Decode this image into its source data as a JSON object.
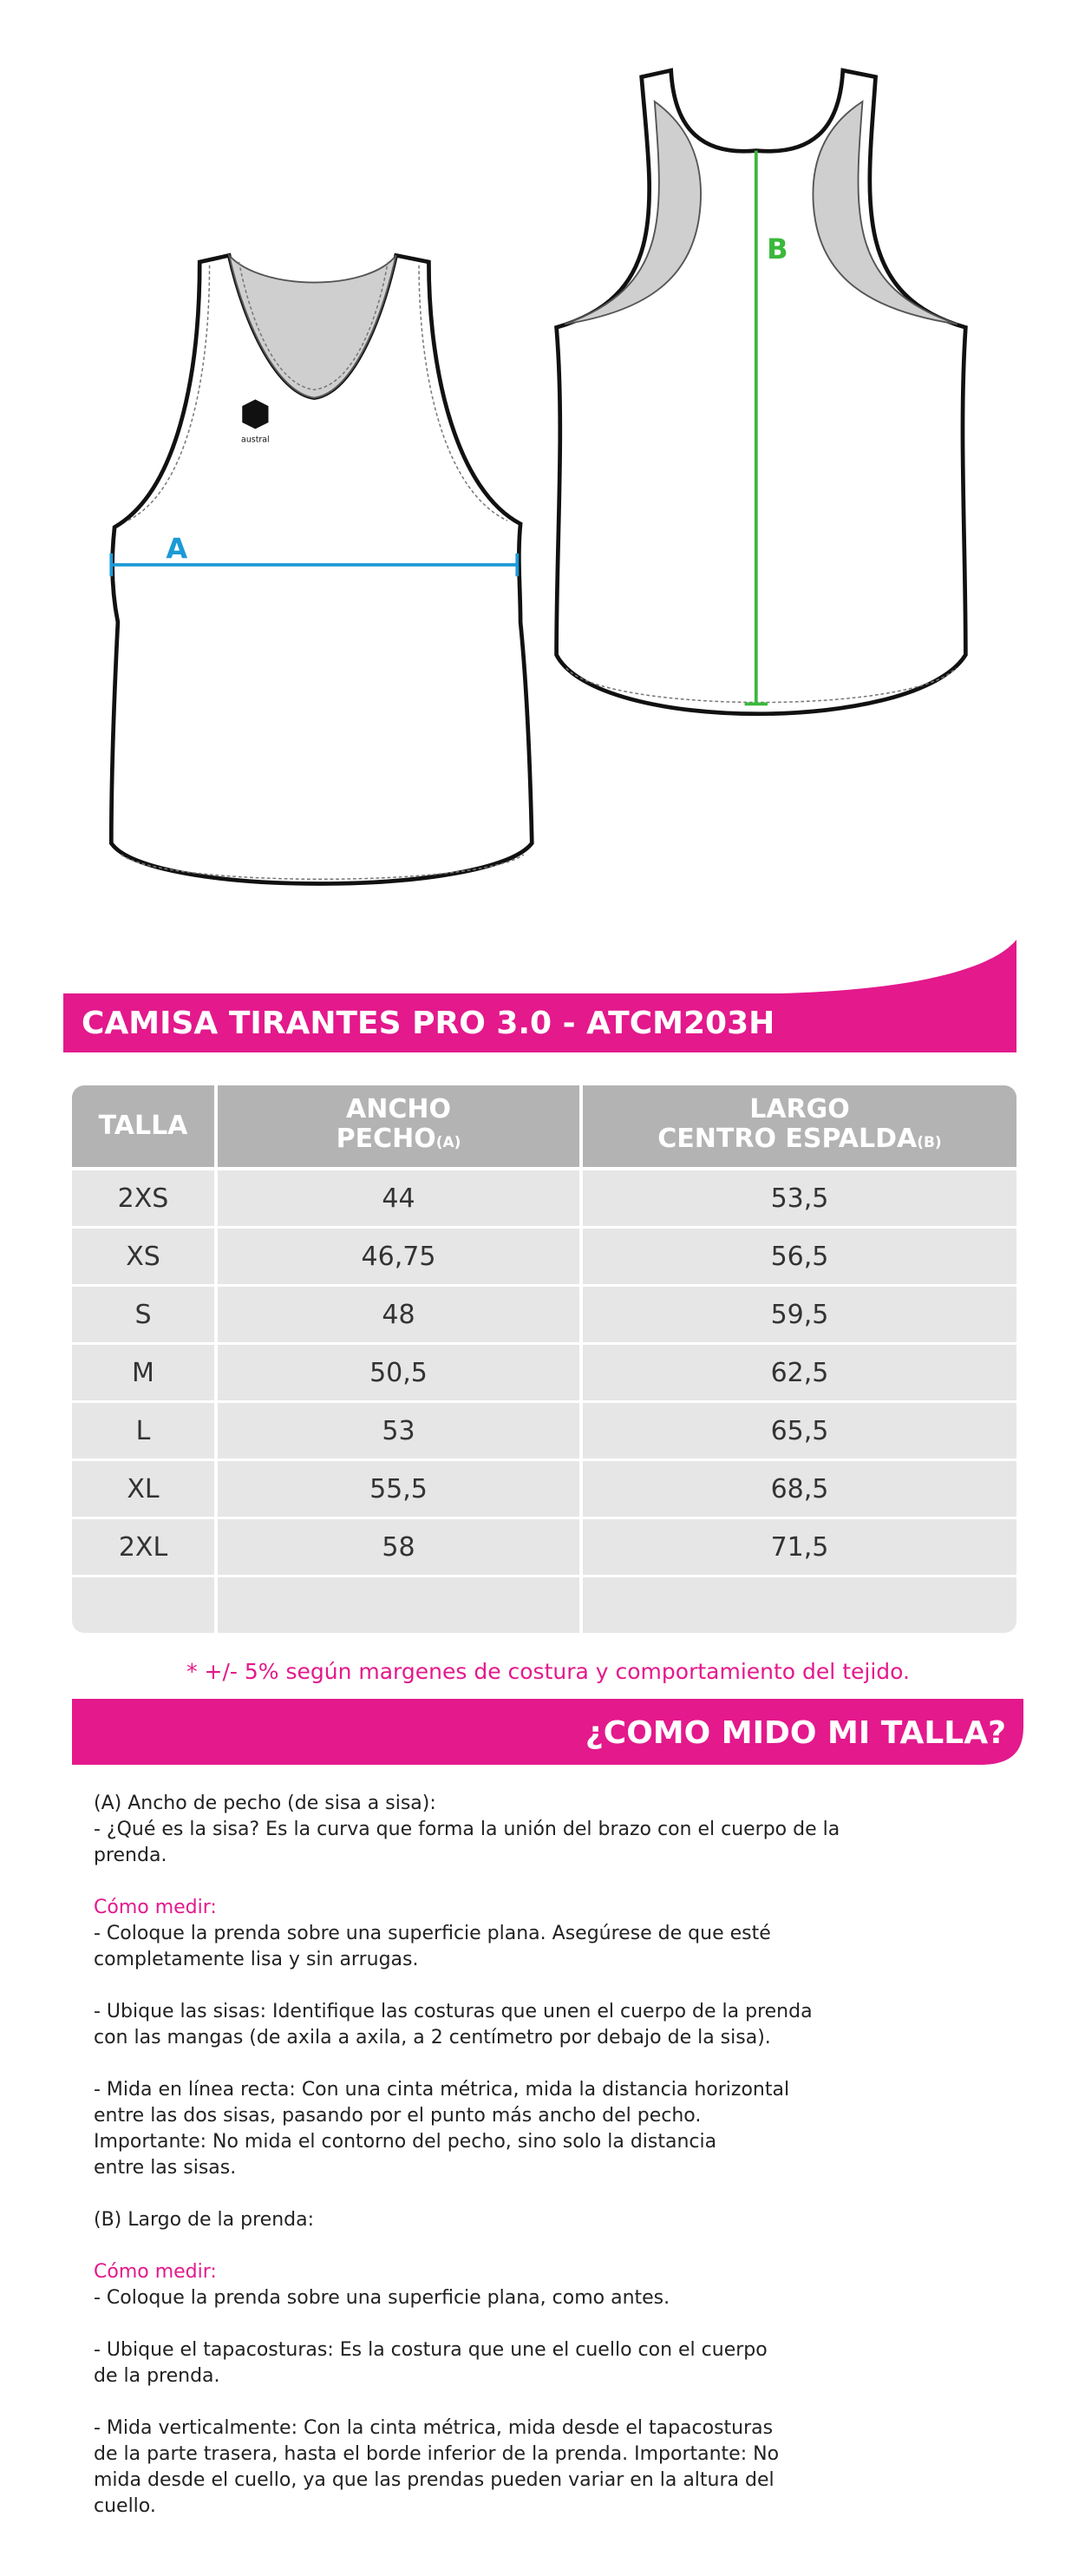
{
  "illustration": {
    "logo": "austral",
    "label_a": "A",
    "label_b": "B"
  },
  "product_title": "CAMISA TIRANTES PRO 3.0 - ATCM203H",
  "table": {
    "headers": [
      {
        "line1": "TALLA"
      },
      {
        "line1": "ANCHO",
        "line2": "PECHO",
        "sub": "(A)"
      },
      {
        "line1": "LARGO",
        "line2": "CENTRO ESPALDA",
        "sub": "(B)"
      }
    ],
    "rows": [
      [
        "2XS",
        "44",
        "53,5"
      ],
      [
        "XS",
        "46,75",
        "56,5"
      ],
      [
        "S",
        "48",
        "59,5"
      ],
      [
        "M",
        "50,5",
        "62,5"
      ],
      [
        "L",
        "53",
        "65,5"
      ],
      [
        "XL",
        "55,5",
        "68,5"
      ],
      [
        "2XL",
        "58",
        "71,5"
      ]
    ]
  },
  "note": "* +/- 5% según margenes de costura y comportamiento del tejido.",
  "guide_title": "¿COMO MIDO MI TALLA?",
  "instructions": [
    {
      "lines": [
        "(A) Ancho de pecho (de sisa a sisa):",
        "- ¿Qué es la sisa? Es la curva que forma la unión del brazo con el cuerpo de la",
        "prenda."
      ]
    },
    {
      "heading": "Cómo medir:",
      "lines": [
        "- Coloque la prenda sobre una superficie plana. Asegúrese de que esté",
        "completamente lisa y sin arrugas."
      ]
    },
    {
      "lines": [
        "- Ubique las sisas: Identifique las costuras que unen el cuerpo de la prenda",
        "con las mangas (de axila a axila, a 2 centímetro por debajo de la sisa)."
      ]
    },
    {
      "lines": [
        "- Mida en línea recta: Con una cinta métrica, mida la distancia horizontal",
        "entre las dos sisas, pasando por el punto más ancho del pecho.",
        "Importante: No mida el contorno del pecho, sino solo la distancia",
        "entre las sisas."
      ]
    },
    {
      "lines": [
        "(B) Largo de la prenda:"
      ]
    },
    {
      "heading": "Cómo medir:",
      "lines": [
        "- Coloque la prenda sobre una superficie plana, como antes."
      ]
    },
    {
      "lines": [
        "- Ubique el tapacosturas: Es la costura que une el cuello con el cuerpo",
        "de la prenda."
      ]
    },
    {
      "lines": [
        "- Mida verticalmente: Con la cinta métrica, mida desde el tapacosturas",
        "de la parte trasera, hasta el borde inferior de la prenda. Importante: No",
        "mida desde el cuello, ya que las prendas pueden variar en la altura del",
        "cuello."
      ]
    }
  ]
}
